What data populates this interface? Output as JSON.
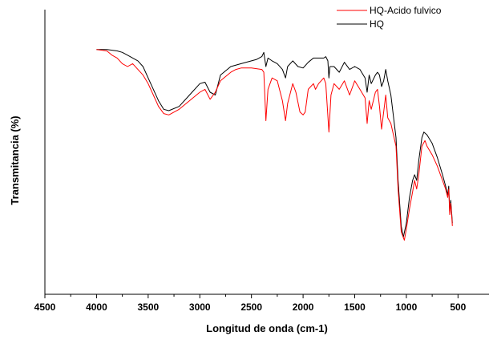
{
  "chart_data": {
    "type": "line",
    "xlabel": "Longitud de onda (cm-1)",
    "ylabel": "Transmitancia (%)",
    "xlim": [
      4500,
      200
    ],
    "ylim": [
      0,
      100
    ],
    "x_reversed": true,
    "x_ticks": [
      4500,
      4000,
      3500,
      3000,
      2500,
      2000,
      1500,
      1000,
      500
    ],
    "y_ticks_shown": false,
    "grid": false,
    "legend_position": "top-right",
    "series": [
      {
        "name": "HQ-Acido fulvico",
        "color": "#ff0000",
        "points": [
          [
            4000,
            86
          ],
          [
            3900,
            85.5
          ],
          [
            3850,
            84
          ],
          [
            3800,
            83
          ],
          [
            3750,
            81
          ],
          [
            3700,
            80
          ],
          [
            3650,
            81
          ],
          [
            3600,
            79
          ],
          [
            3550,
            77
          ],
          [
            3500,
            74
          ],
          [
            3450,
            70
          ],
          [
            3400,
            66
          ],
          [
            3350,
            63.5
          ],
          [
            3300,
            63
          ],
          [
            3200,
            65
          ],
          [
            3100,
            68
          ],
          [
            3000,
            71
          ],
          [
            2950,
            72
          ],
          [
            2900,
            68.5
          ],
          [
            2850,
            71
          ],
          [
            2800,
            75
          ],
          [
            2700,
            78
          ],
          [
            2650,
            79
          ],
          [
            2600,
            79.5
          ],
          [
            2500,
            79.5
          ],
          [
            2400,
            79
          ],
          [
            2380,
            78
          ],
          [
            2360,
            61
          ],
          [
            2340,
            72
          ],
          [
            2300,
            76
          ],
          [
            2250,
            75
          ],
          [
            2200,
            68
          ],
          [
            2170,
            61
          ],
          [
            2150,
            67
          ],
          [
            2100,
            74
          ],
          [
            2070,
            71
          ],
          [
            2030,
            64
          ],
          [
            2000,
            63
          ],
          [
            1980,
            64
          ],
          [
            1950,
            72
          ],
          [
            1900,
            74
          ],
          [
            1880,
            72
          ],
          [
            1850,
            74
          ],
          [
            1800,
            76
          ],
          [
            1780,
            74
          ],
          [
            1750,
            57
          ],
          [
            1730,
            70
          ],
          [
            1700,
            74
          ],
          [
            1650,
            72
          ],
          [
            1600,
            75
          ],
          [
            1550,
            70
          ],
          [
            1500,
            75
          ],
          [
            1450,
            72
          ],
          [
            1400,
            69
          ],
          [
            1380,
            60
          ],
          [
            1360,
            68
          ],
          [
            1340,
            65
          ],
          [
            1300,
            71
          ],
          [
            1280,
            72
          ],
          [
            1260,
            66
          ],
          [
            1240,
            58
          ],
          [
            1220,
            64
          ],
          [
            1200,
            70
          ],
          [
            1180,
            62
          ],
          [
            1150,
            60
          ],
          [
            1100,
            52
          ],
          [
            1080,
            37
          ],
          [
            1050,
            22
          ],
          [
            1020,
            19
          ],
          [
            1000,
            23
          ],
          [
            970,
            30
          ],
          [
            940,
            36
          ],
          [
            920,
            40
          ],
          [
            900,
            37
          ],
          [
            880,
            42
          ],
          [
            850,
            52
          ],
          [
            820,
            54
          ],
          [
            800,
            52
          ],
          [
            750,
            49
          ],
          [
            700,
            45
          ],
          [
            650,
            40
          ],
          [
            620,
            37
          ],
          [
            600,
            34
          ],
          [
            590,
            37
          ],
          [
            580,
            28
          ],
          [
            570,
            32
          ],
          [
            560,
            27
          ],
          [
            555,
            24
          ]
        ]
      },
      {
        "name": "HQ",
        "color": "#000000",
        "points": [
          [
            4000,
            86
          ],
          [
            3900,
            86
          ],
          [
            3800,
            85.5
          ],
          [
            3750,
            85
          ],
          [
            3700,
            84
          ],
          [
            3600,
            82
          ],
          [
            3550,
            80
          ],
          [
            3500,
            76
          ],
          [
            3450,
            72
          ],
          [
            3400,
            68
          ],
          [
            3350,
            65
          ],
          [
            3300,
            64.5
          ],
          [
            3200,
            66
          ],
          [
            3100,
            70
          ],
          [
            3000,
            74
          ],
          [
            2950,
            74.5
          ],
          [
            2900,
            71
          ],
          [
            2850,
            70
          ],
          [
            2800,
            77
          ],
          [
            2700,
            80
          ],
          [
            2600,
            81
          ],
          [
            2500,
            82
          ],
          [
            2450,
            82.5
          ],
          [
            2400,
            83.5
          ],
          [
            2380,
            85
          ],
          [
            2360,
            80
          ],
          [
            2340,
            83
          ],
          [
            2300,
            82
          ],
          [
            2250,
            81
          ],
          [
            2200,
            79
          ],
          [
            2170,
            76
          ],
          [
            2150,
            80
          ],
          [
            2100,
            82
          ],
          [
            2050,
            80
          ],
          [
            2000,
            79.5
          ],
          [
            1950,
            81.5
          ],
          [
            1900,
            83
          ],
          [
            1850,
            83
          ],
          [
            1800,
            83
          ],
          [
            1780,
            83.5
          ],
          [
            1760,
            82
          ],
          [
            1750,
            76
          ],
          [
            1740,
            80
          ],
          [
            1700,
            80
          ],
          [
            1650,
            78
          ],
          [
            1600,
            81.5
          ],
          [
            1550,
            79
          ],
          [
            1500,
            80
          ],
          [
            1450,
            79
          ],
          [
            1400,
            76
          ],
          [
            1380,
            71
          ],
          [
            1360,
            77
          ],
          [
            1340,
            74
          ],
          [
            1300,
            77
          ],
          [
            1280,
            78
          ],
          [
            1260,
            77
          ],
          [
            1240,
            73
          ],
          [
            1220,
            75
          ],
          [
            1200,
            79
          ],
          [
            1180,
            75
          ],
          [
            1150,
            70
          ],
          [
            1100,
            55
          ],
          [
            1080,
            40
          ],
          [
            1050,
            24
          ],
          [
            1030,
            20
          ],
          [
            1000,
            25
          ],
          [
            970,
            34
          ],
          [
            940,
            40
          ],
          [
            920,
            42
          ],
          [
            900,
            40
          ],
          [
            880,
            47
          ],
          [
            850,
            55
          ],
          [
            830,
            57
          ],
          [
            800,
            56
          ],
          [
            750,
            53
          ],
          [
            700,
            48
          ],
          [
            650,
            42
          ],
          [
            620,
            38
          ],
          [
            600,
            35
          ],
          [
            590,
            38
          ],
          [
            580,
            29
          ],
          [
            570,
            33
          ],
          [
            560,
            28
          ],
          [
            555,
            25
          ]
        ]
      }
    ]
  }
}
